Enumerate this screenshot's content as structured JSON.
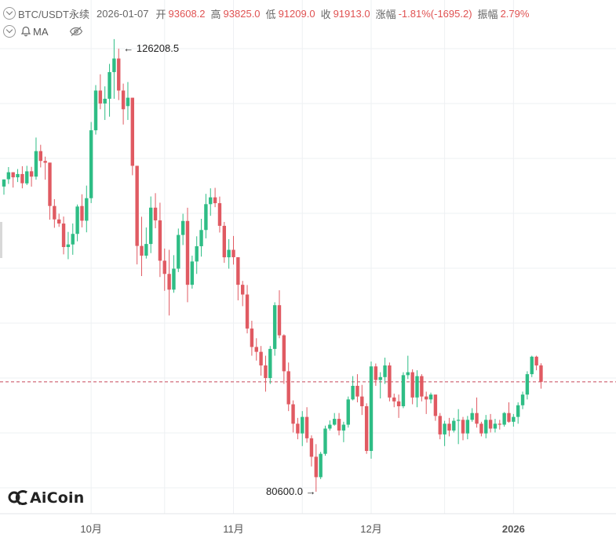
{
  "header": {
    "symbol": "BTC/USDT永续",
    "date": "2026-01-07",
    "open_label": "开",
    "open": "93608.2",
    "high_label": "高",
    "high": "93825.0",
    "low_label": "低",
    "low": "91209.0",
    "close_label": "收",
    "close": "91913.0",
    "change_label": "涨幅",
    "change": "-1.81%(-1695.2)",
    "amp_label": "振幅",
    "amp": "2.79%",
    "indicator": "MA"
  },
  "logo": {
    "text": "AiCoin"
  },
  "colors": {
    "up": "#2ebd85",
    "down": "#e05a62",
    "grid": "#eef0f3",
    "axis_text": "#555555",
    "price_line": "#c8485a"
  },
  "chart_data": {
    "type": "candlestick",
    "title": "",
    "x_ticks": [
      {
        "label": "10月",
        "index": 19
      },
      {
        "label": "11月",
        "index": 50
      },
      {
        "label": "12月",
        "index": 80
      },
      {
        "label": "2026",
        "index": 111
      }
    ],
    "y_range": [
      78000,
      131000
    ],
    "annotations": [
      {
        "label": "← 126208.5",
        "index": 25,
        "value": 126208.5,
        "side": "right"
      },
      {
        "label": "80600.0 →",
        "index": 69,
        "value": 80600.0,
        "side": "left"
      }
    ],
    "last_price": 91913.0,
    "candles": [
      [
        112014,
        112744,
        111176,
        112744
      ],
      [
        112768,
        114017,
        112280,
        113484
      ],
      [
        113484,
        113484,
        111906,
        112963
      ],
      [
        112963,
        113814,
        112475,
        113300
      ],
      [
        113300,
        114106,
        111829,
        112354
      ],
      [
        112338,
        114147,
        112167,
        113578
      ],
      [
        113586,
        114041,
        112005,
        113034
      ],
      [
        113034,
        117057,
        112719,
        115660
      ],
      [
        115660,
        116309,
        113982,
        114649
      ],
      [
        114649,
        115092,
        112719,
        114462
      ],
      [
        114478,
        114478,
        108601,
        110010
      ],
      [
        110010,
        110716,
        107765,
        108633
      ],
      [
        108625,
        109217,
        107862,
        108211
      ],
      [
        108203,
        108925,
        105031,
        105785
      ],
      [
        105785,
        107343,
        104536,
        106053
      ],
      [
        106053,
        108211,
        104991,
        107140
      ],
      [
        107140,
        110164,
        106377,
        109955
      ],
      [
        110010,
        111216,
        107813,
        108495
      ],
      [
        108495,
        112111,
        107302,
        110814
      ],
      [
        110814,
        118656,
        110311,
        117805
      ],
      [
        117805,
        122453,
        117358,
        121894
      ],
      [
        121894,
        123565,
        119970,
        120562
      ],
      [
        120562,
        122323,
        118867,
        121049
      ],
      [
        121049,
        124638,
        119206,
        123792
      ],
      [
        123792,
        127187,
        121049,
        125192
      ],
      [
        125192,
        126208,
        120911,
        121894
      ],
      [
        121894,
        122607,
        118396,
        119970
      ],
      [
        120294,
        122770,
        118867,
        121155
      ],
      [
        121155,
        121155,
        113176,
        114147
      ],
      [
        114147,
        114147,
        104000,
        105900
      ],
      [
        105900,
        108900,
        102800,
        104900
      ],
      [
        104900,
        107800,
        104600,
        106100
      ],
      [
        106100,
        110990,
        105160,
        109840
      ],
      [
        109840,
        111330,
        107720,
        108530
      ],
      [
        108530,
        110350,
        102700,
        104380
      ],
      [
        104380,
        105630,
        101280,
        103020
      ],
      [
        103020,
        105500,
        98740,
        101400
      ],
      [
        101400,
        104950,
        101080,
        103560
      ],
      [
        103560,
        107690,
        103210,
        107030
      ],
      [
        107030,
        109210,
        105990,
        108470
      ],
      [
        108470,
        109830,
        100100,
        101900
      ],
      [
        101900,
        104900,
        101500,
        104300
      ],
      [
        104300,
        106890,
        103020,
        105870
      ],
      [
        105870,
        108690,
        104800,
        107540
      ],
      [
        107540,
        111260,
        106680,
        110200
      ],
      [
        110200,
        111830,
        109000,
        110900
      ],
      [
        110900,
        111880,
        109890,
        110300
      ],
      [
        110300,
        110980,
        107280,
        107970
      ],
      [
        107970,
        108370,
        104160,
        104730
      ],
      [
        104730,
        106600,
        103560,
        105500
      ],
      [
        105500,
        106930,
        103980,
        104740
      ],
      [
        104740,
        104740,
        100300,
        101900
      ],
      [
        101900,
        102300,
        99700,
        100900
      ],
      [
        100900,
        101880,
        96900,
        97400
      ],
      [
        97400,
        98200,
        94600,
        95500
      ],
      [
        95500,
        96400,
        94100,
        95000
      ],
      [
        95000,
        95600,
        92550,
        93600
      ],
      [
        93600,
        94600,
        90900,
        92300
      ],
      [
        92300,
        95600,
        91700,
        95300
      ],
      [
        95300,
        100100,
        94600,
        99800
      ],
      [
        99800,
        101340,
        96400,
        96700
      ],
      [
        96700,
        96800,
        91700,
        93000
      ],
      [
        93000,
        93900,
        88900,
        89600
      ],
      [
        89600,
        90000,
        86700,
        87600
      ],
      [
        87600,
        88200,
        86000,
        86600
      ],
      [
        86600,
        88900,
        85300,
        88300
      ],
      [
        88300,
        89300,
        85650,
        86100
      ],
      [
        86100,
        86400,
        83200,
        84200
      ],
      [
        84200,
        85500,
        80600,
        82100
      ],
      [
        82100,
        84700,
        81900,
        84500
      ],
      [
        84500,
        87400,
        84300,
        87100
      ],
      [
        87100,
        87940,
        86900,
        87500
      ],
      [
        87500,
        88700,
        87400,
        88100
      ],
      [
        88100,
        88700,
        86400,
        86900
      ],
      [
        86900,
        87800,
        85700,
        87500
      ],
      [
        87500,
        90400,
        87200,
        90100
      ],
      [
        90100,
        92500,
        90000,
        91500
      ],
      [
        91500,
        92700,
        89800,
        90400
      ],
      [
        90400,
        91600,
        88500,
        89400
      ],
      [
        89400,
        89700,
        84500,
        84800
      ],
      [
        84800,
        94000,
        84000,
        93500
      ],
      [
        93500,
        93800,
        91500,
        92100
      ],
      [
        92100,
        92900,
        90200,
        92400
      ],
      [
        92400,
        94400,
        91700,
        93600
      ],
      [
        93600,
        93900,
        89900,
        90300
      ],
      [
        90300,
        90700,
        89300,
        89900
      ],
      [
        89900,
        90600,
        88200,
        89400
      ],
      [
        89400,
        92900,
        89200,
        92600
      ],
      [
        92600,
        94600,
        92200,
        92900
      ],
      [
        92900,
        93200,
        89600,
        90300
      ],
      [
        90300,
        93100,
        89300,
        92500
      ],
      [
        92500,
        92700,
        89900,
        90400
      ],
      [
        90400,
        90900,
        88600,
        90100
      ],
      [
        90100,
        90800,
        89700,
        90600
      ],
      [
        90600,
        90600,
        87900,
        88400
      ],
      [
        88400,
        88700,
        86000,
        86500
      ],
      [
        86500,
        87900,
        85300,
        87600
      ],
      [
        87600,
        88200,
        86300,
        86900
      ],
      [
        86900,
        88200,
        86700,
        87900
      ],
      [
        87900,
        89100,
        85500,
        88000
      ],
      [
        88000,
        88300,
        85900,
        86600
      ],
      [
        86600,
        88400,
        86000,
        88000
      ],
      [
        88000,
        89200,
        87800,
        88700
      ],
      [
        88700,
        90300,
        87200,
        87600
      ],
      [
        87600,
        87800,
        86300,
        86600
      ],
      [
        86600,
        88500,
        86100,
        88000
      ],
      [
        88000,
        88600,
        86700,
        87100
      ],
      [
        87100,
        88100,
        86700,
        87600
      ],
      [
        87600,
        88000,
        87000,
        87500
      ],
      [
        87500,
        88800,
        87300,
        88700
      ],
      [
        88700,
        89800,
        87700,
        87800
      ],
      [
        87800,
        88600,
        87300,
        88300
      ],
      [
        88300,
        89800,
        87600,
        89500
      ],
      [
        89500,
        90900,
        89100,
        90600
      ],
      [
        90600,
        93000,
        90100,
        92700
      ],
      [
        92700,
        94600,
        92400,
        94500
      ],
      [
        94500,
        94600,
        93100,
        93600
      ],
      [
        93608,
        93825,
        91209,
        91913
      ]
    ]
  }
}
